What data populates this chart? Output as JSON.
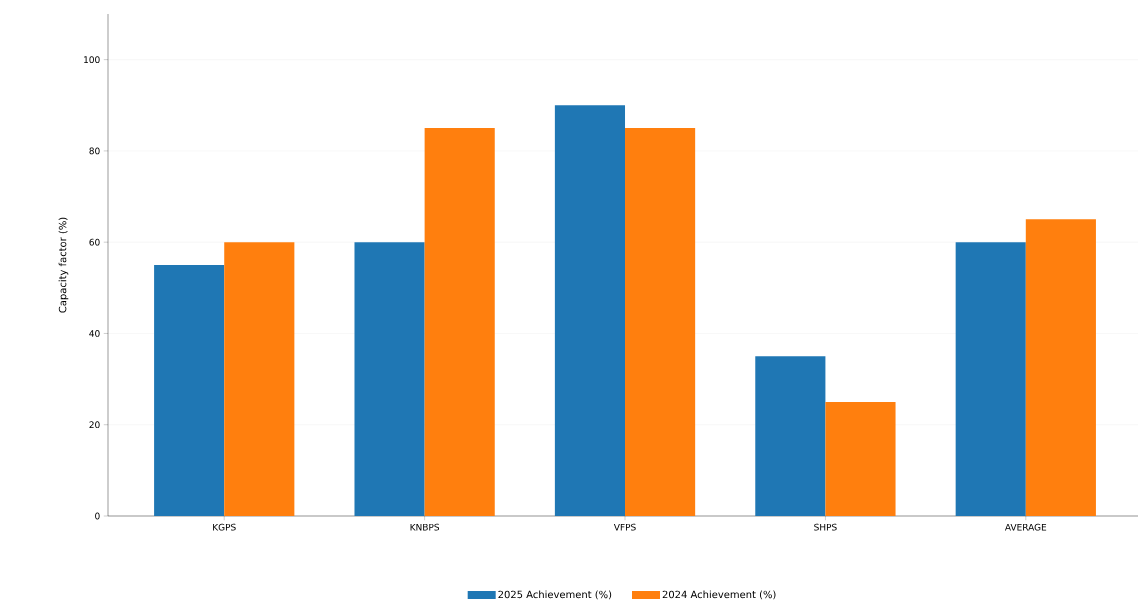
{
  "chart_data": {
    "type": "bar",
    "ylabel": "Capacity factor (%)",
    "categories": [
      "KGPS",
      "KNBPS",
      "VFPS",
      "SHPS",
      "AVERAGE"
    ],
    "series": [
      {
        "name": "2025 Achievement (%)",
        "color": "#1f77b4",
        "values": [
          55,
          60,
          90,
          35,
          60
        ]
      },
      {
        "name": "2024 Achievement (%)",
        "color": "#ff7f0e",
        "values": [
          60,
          85,
          85,
          25,
          65
        ]
      }
    ],
    "ylim": [
      0,
      110
    ],
    "yticks": [
      0,
      20,
      40,
      60,
      80,
      100
    ],
    "grid": "y",
    "legend": "bottom"
  }
}
